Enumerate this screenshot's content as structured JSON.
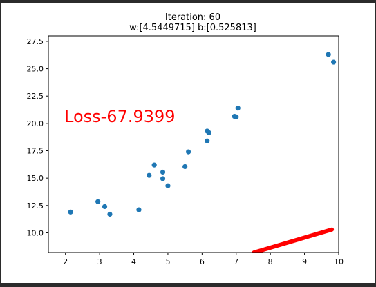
{
  "chart_data": {
    "type": "scatter",
    "title": "Iteration: 60",
    "subtitle": "w:[4.5449715] b:[0.525813]",
    "annotation": "Loss-67.9399",
    "xlim": [
      1.5,
      10.0
    ],
    "ylim": [
      8.2,
      28.0
    ],
    "xticks": [
      "2",
      "3",
      "4",
      "5",
      "6",
      "7",
      "8",
      "9",
      "10"
    ],
    "yticks": [
      "10.0",
      "12.5",
      "15.0",
      "17.5",
      "20.0",
      "22.5",
      "25.0",
      "27.5"
    ],
    "grid": false,
    "colors": {
      "points": "#1f77b4",
      "line": "#ff0000",
      "annotation": "#ff0000"
    },
    "series": [
      {
        "kind": "scatter",
        "x": [
          2.15,
          2.95,
          3.15,
          3.3,
          4.15,
          4.45,
          4.6,
          4.85,
          4.85,
          5.0,
          5.5,
          5.6,
          6.15,
          6.15,
          6.2,
          6.95,
          7.0,
          7.05,
          9.7,
          9.85
        ],
        "y": [
          11.9,
          12.85,
          12.4,
          11.7,
          12.1,
          15.25,
          16.2,
          15.55,
          14.95,
          14.3,
          16.05,
          17.4,
          19.3,
          18.4,
          19.15,
          20.65,
          20.6,
          21.4,
          26.3,
          25.6
        ]
      },
      {
        "kind": "line",
        "x": [
          7.52,
          9.8
        ],
        "y": [
          8.2,
          10.3
        ]
      }
    ]
  }
}
